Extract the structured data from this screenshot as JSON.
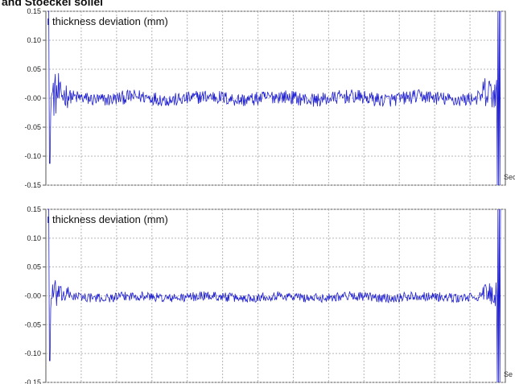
{
  "page": {
    "title": "and Stoeckel sollel"
  },
  "chart_data": [
    {
      "type": "line",
      "title": "",
      "xlabel": "Sec",
      "ylabel": "",
      "ylim": [
        -0.15,
        0.15
      ],
      "yticks": [
        "0.15",
        "0.10",
        "0.05",
        "-0.00",
        "-0.05",
        "-0.10",
        "-0.15"
      ],
      "x_gridlines": 12,
      "grid": true,
      "grid_style": "dotted",
      "legend": "top-left",
      "series": [
        {
          "name": "thickness deviation (mm)",
          "color": "#1f1fd0",
          "amplitude": 0.012,
          "offset": 0.0
        }
      ]
    },
    {
      "type": "line",
      "title": "",
      "xlabel": "Se",
      "ylabel": "",
      "ylim": [
        -0.15,
        0.15
      ],
      "yticks": [
        "0.15",
        "0.10",
        "0.05",
        "-0.00",
        "-0.05",
        "-0.10",
        "-0.15"
      ],
      "x_gridlines": 12,
      "grid": true,
      "grid_style": "dotted",
      "legend": "top-left",
      "series": [
        {
          "name": "thickness deviation (mm)",
          "color": "#1f1fd0",
          "amplitude": 0.008,
          "offset": -0.002
        }
      ]
    }
  ]
}
